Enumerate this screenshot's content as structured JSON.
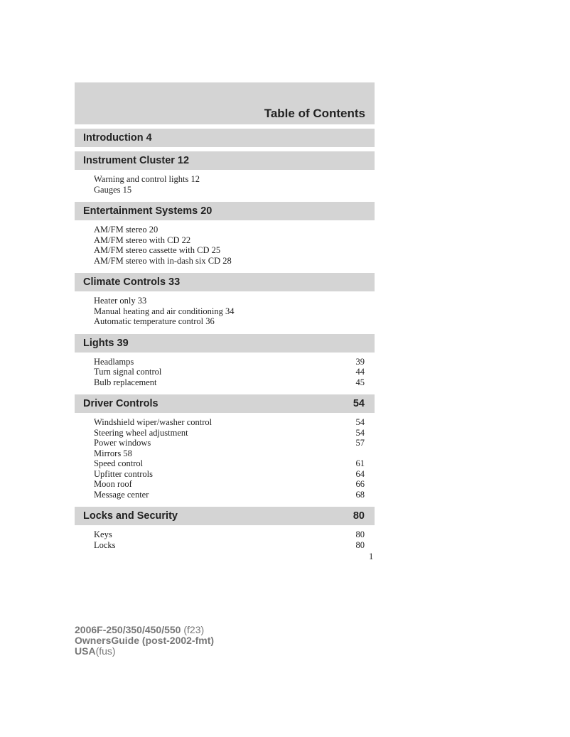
{
  "title": "Table of Contents",
  "sections": [
    {
      "title": "Introduction 4",
      "page": "",
      "items": []
    },
    {
      "title": "Instrument Cluster 12",
      "page": "",
      "items": [
        {
          "text": "Warning and control lights 12",
          "page": ""
        },
        {
          "text": "Gauges 15",
          "page": ""
        }
      ]
    },
    {
      "title": "Entertainment Systems 20",
      "page": "",
      "items": [
        {
          "text": "AM/FM stereo 20",
          "page": ""
        },
        {
          "text": "AM/FM stereo with CD 22",
          "page": ""
        },
        {
          "text": "AM/FM stereo cassette with CD 25",
          "page": ""
        },
        {
          "text": "AM/FM stereo with in-dash six CD 28",
          "page": ""
        }
      ]
    },
    {
      "title": "Climate Controls 33",
      "page": "",
      "items": [
        {
          "text": "Heater only 33",
          "page": ""
        },
        {
          "text": "Manual heating and air conditioning 34",
          "page": ""
        },
        {
          "text": "Automatic temperature control 36",
          "page": ""
        }
      ]
    },
    {
      "title": "Lights 39",
      "page": "",
      "items": [
        {
          "text": "Headlamps",
          "page": "39"
        },
        {
          "text": "Turn signal control",
          "page": "44"
        },
        {
          "text": "Bulb replacement",
          "page": "45"
        }
      ]
    },
    {
      "title": "Driver Controls",
      "page": "54",
      "items": [
        {
          "text": "Windshield wiper/washer control",
          "page": "54"
        },
        {
          "text": "Steering wheel adjustment",
          "page": "54"
        },
        {
          "text": "Power windows",
          "page": "57"
        },
        {
          "text": "Mirrors 58",
          "page": ""
        },
        {
          "text": "Speed control",
          "page": "61"
        },
        {
          "text": "Upfitter controls",
          "page": "64"
        },
        {
          "text": "Moon roof",
          "page": "66"
        },
        {
          "text": "Message center",
          "page": "68"
        }
      ]
    },
    {
      "title": "Locks and Security",
      "page": "80",
      "items": [
        {
          "text": "Keys",
          "page": "80"
        },
        {
          "text": "Locks",
          "page": "80"
        }
      ]
    }
  ],
  "page_number": "1",
  "footer": {
    "line1_bold": "2006F-250/350/450/550",
    "line1_rest": " (f23)",
    "line2": "OwnersGuide (post-2002-fmt)",
    "line3_bold": "USA",
    "line3_rest": "(fus)"
  }
}
